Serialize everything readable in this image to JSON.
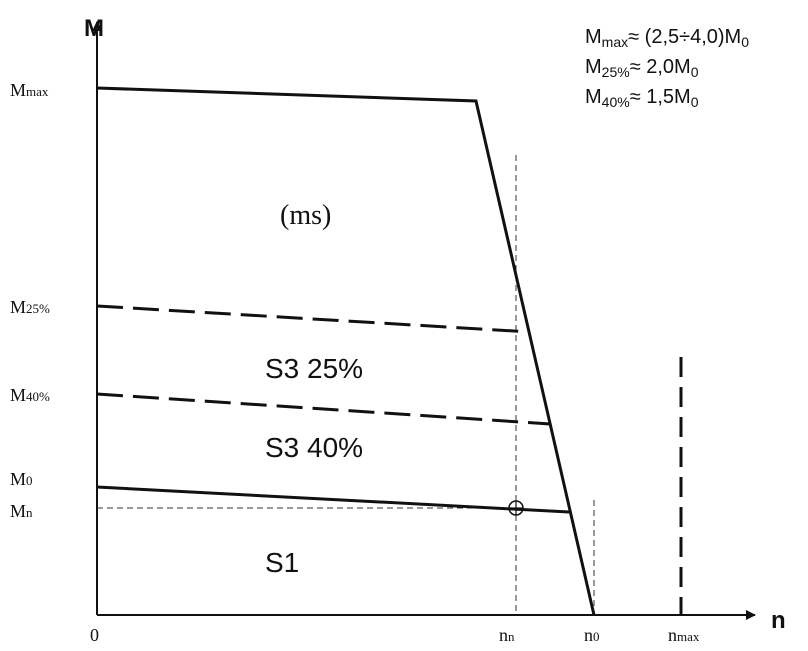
{
  "axes": {
    "y_label": "M",
    "x_label": "n",
    "origin": "0"
  },
  "y_ticks": [
    "Mmax",
    "M25%",
    "M40%",
    "M0",
    "Mn"
  ],
  "x_ticks": [
    "nn",
    "n0",
    "nmax"
  ],
  "regions": {
    "ms": "(ms)",
    "s3_25": "S3 25%",
    "s3_40": "S3 40%",
    "s1": "S1"
  },
  "legend": [
    "Mmax≈ (2,5÷4,0)M0",
    "M25%≈ 2,0M0",
    "M40%≈ 1,5M0"
  ],
  "legend_parts": {
    "mmax_sub": "max",
    "mmax_expr": "≈ (2,5÷4,0)M",
    "mmax_tail": "0",
    "m25_sub": "25%",
    "m25_expr": "≈ 2,0M",
    "m25_tail": "0",
    "m40_sub": "40%",
    "m40_expr": "≈ 1,5M",
    "m40_tail": "0",
    "m_letter": "M"
  },
  "tick_parts": {
    "m": "M",
    "n": "n",
    "max": "max",
    "p25": "25%",
    "p40": "40%",
    "zero": "0",
    "nsub": "n"
  }
}
